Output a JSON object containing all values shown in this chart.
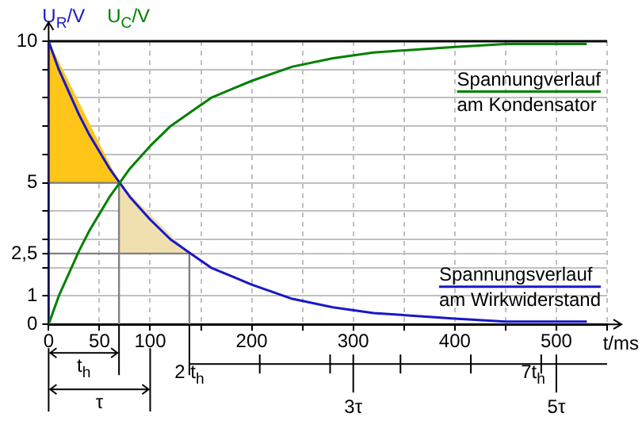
{
  "chart_data": {
    "type": "line",
    "xlabel": "t/ms",
    "ylabel": "U$_{R}$/V  U$_{C}$/V",
    "x": [
      0,
      10,
      20,
      30,
      40,
      50,
      60,
      70,
      80,
      90,
      100,
      120,
      140,
      160,
      180,
      200,
      240,
      280,
      320,
      360,
      400,
      450,
      500,
      530
    ],
    "series": [
      {
        "name": "Spannungverlauf am Kondensator",
        "color": "#008000",
        "values": [
          0,
          1.0,
          1.8,
          2.6,
          3.3,
          3.9,
          4.5,
          5.0,
          5.5,
          5.9,
          6.3,
          7.0,
          7.5,
          8.0,
          8.3,
          8.6,
          9.1,
          9.4,
          9.6,
          9.7,
          9.8,
          9.9,
          9.9,
          9.9
        ]
      },
      {
        "name": "Spannungsverlauf am Wirkwiderstand",
        "color": "#1818c8",
        "x": [
          0,
          0,
          10,
          20,
          30,
          40,
          50,
          60,
          70,
          80,
          90,
          100,
          120,
          140,
          160,
          180,
          200,
          240,
          280,
          320,
          360,
          400,
          450,
          500,
          530
        ],
        "values": [
          0,
          10,
          9.0,
          8.2,
          7.4,
          6.7,
          6.1,
          5.5,
          5.0,
          4.5,
          4.1,
          3.7,
          3.0,
          2.5,
          2.0,
          1.7,
          1.4,
          0.9,
          0.6,
          0.4,
          0.3,
          0.2,
          0.1,
          0.1,
          0.1
        ]
      },
      {
        "type": "area",
        "color": "#ffc619",
        "x": [
          0,
          0,
          69.3
        ],
        "values": [
          5,
          10,
          5
        ]
      },
      {
        "type": "area",
        "color": "#f0e0b0",
        "x": [
          69.3,
          69.3,
          138.6
        ],
        "values": [
          2.5,
          5,
          2.5
        ]
      },
      {
        "color": "#808080",
        "x": [
          0,
          69.3,
          69.3,
          null,
          0,
          138.6,
          138.6
        ],
        "values": [
          5,
          5,
          0,
          null,
          2.5,
          2.5,
          0
        ]
      }
    ],
    "xlim": [
      0,
      550
    ],
    "xticks": [
      0,
      50,
      100,
      {
        "value": 150,
        "label": null
      },
      200,
      {
        "value": 250,
        "label": null
      },
      300,
      {
        "value": 350,
        "label": null
      },
      400,
      {
        "value": 450,
        "label": null
      },
      500,
      {
        "value": 550,
        "label": null
      }
    ],
    "ylim": [
      0,
      10
    ],
    "yticks": [
      0,
      1,
      {
        "value": 2,
        "label": null
      },
      {
        "value": 2.5,
        "label": "2,5"
      },
      {
        "value": 3,
        "label": null
      },
      {
        "value": 4,
        "label": null
      },
      5,
      {
        "value": 6,
        "label": null
      },
      {
        "value": 7,
        "label": null
      },
      {
        "value": 8,
        "label": null
      },
      {
        "value": 9,
        "label": null
      },
      10
    ],
    "annotations": [
      "t$_{h}$",
      "τ",
      "2 t$_{h}$",
      "3τ",
      "7t$_{h}$",
      "5τ"
    ],
    "ref_lines": [
      {
        "axis": "y",
        "value": 10,
        "color": "#000000"
      }
    ],
    "grid": true,
    "legend": false,
    "marker": "none",
    "line_style": "solid"
  }
}
